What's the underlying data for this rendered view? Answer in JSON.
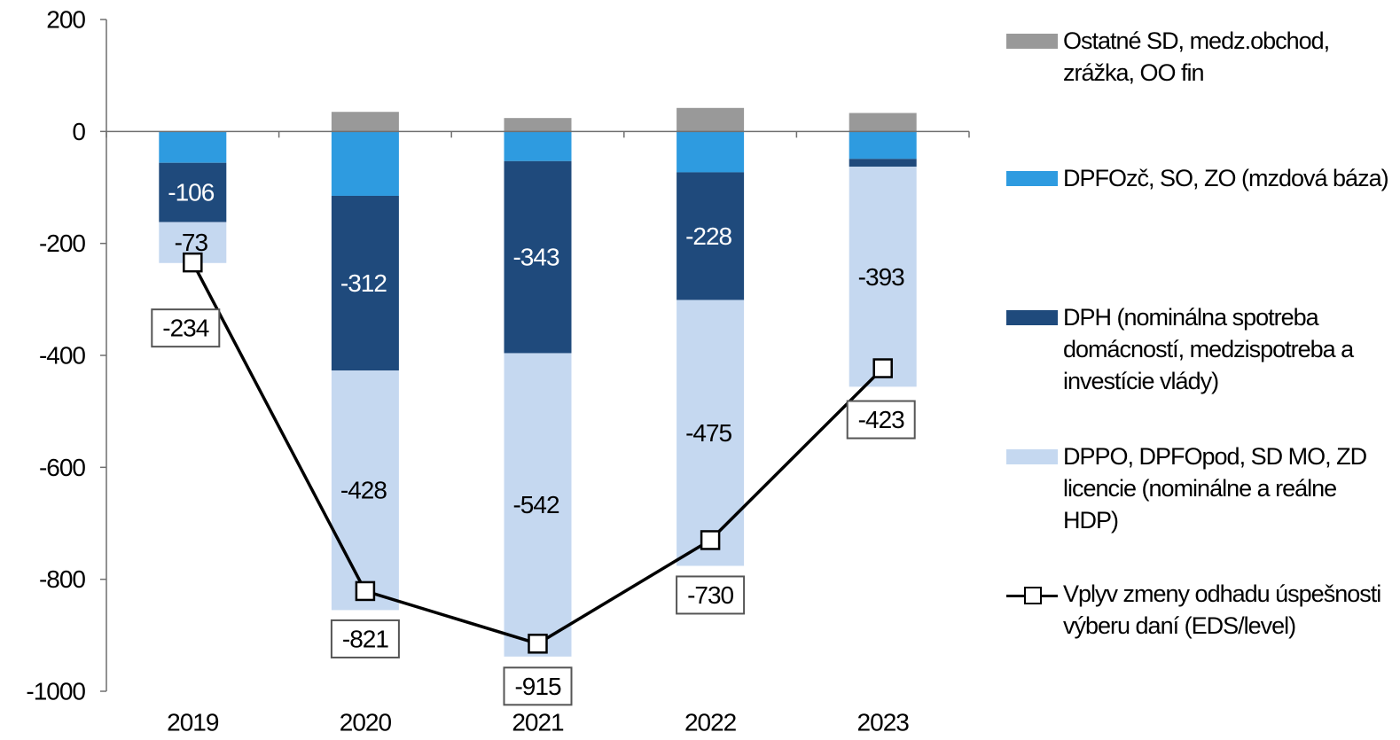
{
  "chart_data": {
    "type": "bar",
    "stacked": true,
    "categories": [
      "2019",
      "2020",
      "2021",
      "2022",
      "2023"
    ],
    "ylim": [
      -1000,
      200
    ],
    "yticks": [
      200,
      0,
      -200,
      -400,
      -600,
      -800,
      -1000
    ],
    "grid": false,
    "legend_position": "right",
    "series": [
      {
        "name": "Ostatné SD, medz.obchod, zrážka, OO fin",
        "color": "#999999",
        "values": [
          0,
          35,
          24,
          42,
          33
        ],
        "labels": []
      },
      {
        "name": "DPFOzč, SO, ZO (mzdová báza)",
        "color": "#2e9be0",
        "values": [
          -56,
          -115,
          -53,
          -73,
          -49
        ],
        "labels": []
      },
      {
        "name": "DPH (nominálna spotreba domácností, medzispotreba a investície vlády)",
        "color": "#1f4a7c",
        "values": [
          -106,
          -312,
          -343,
          -228,
          -14
        ],
        "labels": [
          "-106",
          "-312",
          "-343",
          "-228",
          ""
        ]
      },
      {
        "name": "DPPO, DPFOpod, SD MO, ZD licencie (nominálne a reálne HDP)",
        "color": "#c5d8f0",
        "values": [
          -73,
          -428,
          -542,
          -475,
          -393
        ],
        "labels": [
          "-73",
          "-428",
          "-542",
          "-475",
          "-393"
        ]
      }
    ],
    "line": {
      "name": "Vplyv zmeny odhadu úspešnosti výberu daní (EDS/level)",
      "color": "#000000",
      "values": [
        -234,
        -821,
        -915,
        -730,
        -423
      ],
      "labels": [
        "-234",
        "-821",
        "-915",
        "-730",
        "-423"
      ]
    }
  },
  "legend": [
    {
      "label": "Ostatné SD, medz.obchod, zrážka, OO fin",
      "color": "#999999",
      "kind": "bar"
    },
    {
      "label": "DPFOzč, SO, ZO (mzdová báza)",
      "color": "#2e9be0",
      "kind": "bar"
    },
    {
      "label": "DPH (nominálna spotreba domácností, medzispotreba a investície vlády)",
      "color": "#1f4a7c",
      "kind": "bar"
    },
    {
      "label": "DPPO, DPFOpod, SD MO, ZD licencie (nominálne a reálne HDP)",
      "color": "#c5d8f0",
      "kind": "bar"
    },
    {
      "label": "Vplyv zmeny odhadu úspešnosti výberu daní (EDS/level)",
      "color": "#000000",
      "kind": "line"
    }
  ]
}
